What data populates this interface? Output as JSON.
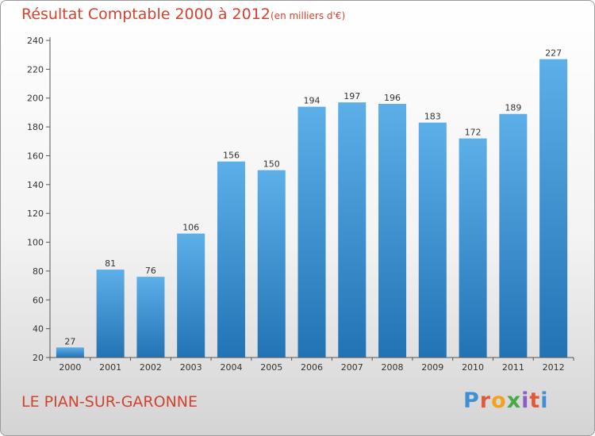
{
  "header": {
    "title": "Résultat Comptable 2000 à 2012",
    "subtitle": "(en milliers d'€)"
  },
  "footer": {
    "place": "LE PIAN-SUR-GARONNE",
    "logo_text": "Proxiti",
    "logo_colors": [
      "#3f8fd2",
      "#e05a3a",
      "#f2a31b",
      "#4aa84a",
      "#8a5cc5",
      "#e05a3a",
      "#3f8fd2"
    ]
  },
  "colors": {
    "bar_top": "#5dafe9",
    "bar_bottom": "#2273b4",
    "axis": "#555555",
    "grid": "#d8d8d8",
    "title": "#d2432f"
  },
  "chart_data": {
    "type": "bar",
    "title": "Résultat Comptable 2000 à 2012",
    "subtitle": "(en milliers d'€)",
    "categories": [
      "2000",
      "2001",
      "2002",
      "2003",
      "2004",
      "2005",
      "2006",
      "2007",
      "2008",
      "2009",
      "2010",
      "2011",
      "2012"
    ],
    "values": [
      27,
      81,
      76,
      106,
      156,
      150,
      194,
      197,
      196,
      183,
      172,
      189,
      227
    ],
    "ylim": [
      20,
      240
    ],
    "yticks": [
      20,
      40,
      60,
      80,
      100,
      120,
      140,
      160,
      180,
      200,
      220,
      240
    ],
    "xlabel": "",
    "ylabel": "",
    "grid": false,
    "data_labels": true
  }
}
